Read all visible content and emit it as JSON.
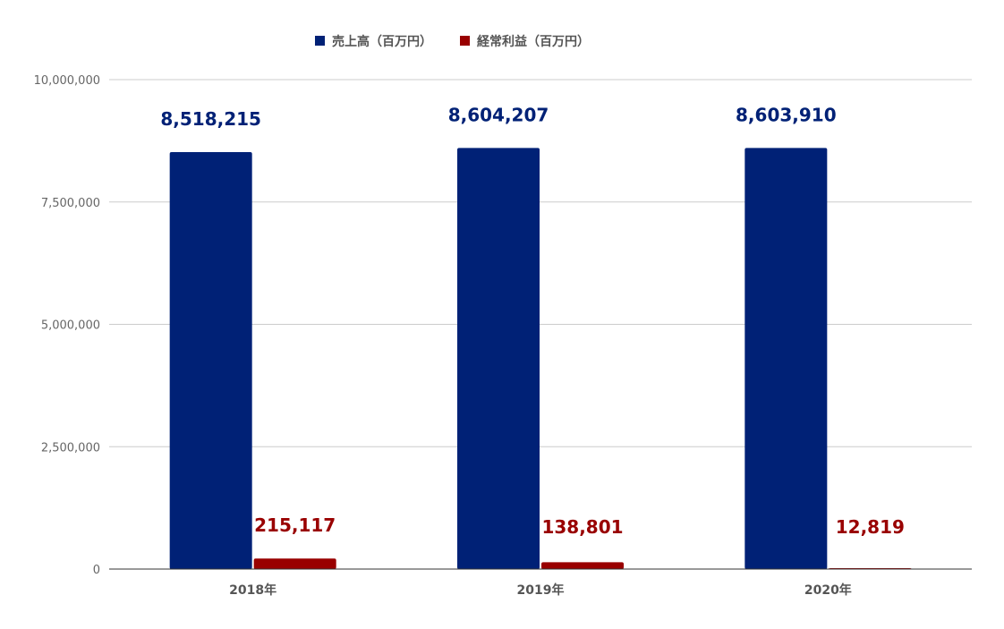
{
  "chart_data": {
    "type": "bar",
    "categories": [
      "2018年",
      "2019年",
      "2020年"
    ],
    "series": [
      {
        "name": "売上高（百万円）",
        "values": [
          8518215,
          8604207,
          8603910
        ],
        "labels": [
          "8,518,215",
          "8,604,207",
          "8,603,910"
        ],
        "color": "#002176"
      },
      {
        "name": "経常利益（百万円）",
        "values": [
          215117,
          138801,
          12819
        ],
        "labels": [
          "215,117",
          "138,801",
          "12,819"
        ],
        "color": "#990000"
      }
    ],
    "ylim": [
      0,
      10000000
    ],
    "yticks": [
      0,
      2500000,
      5000000,
      7500000,
      10000000
    ],
    "ytick_labels": [
      "0",
      "2,500,000",
      "5,000,000",
      "7,500,000",
      "10,000,000"
    ],
    "grid": true,
    "legend_position": "top-center",
    "title": "",
    "xlabel": "",
    "ylabel": ""
  }
}
